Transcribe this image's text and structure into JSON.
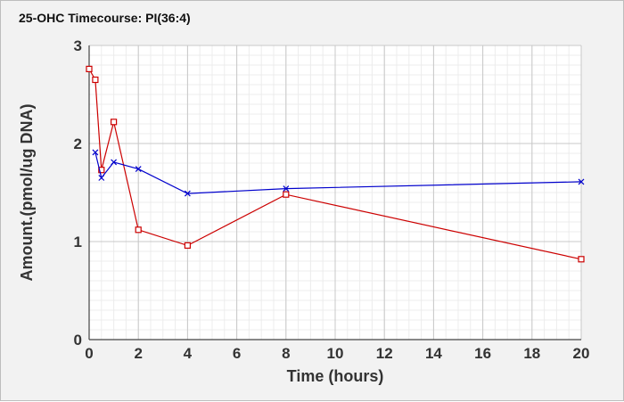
{
  "chart_data": {
    "type": "line",
    "title": "25-OHC Timecourse: PI(36:4)",
    "xlabel": "Time (hours)",
    "ylabel": "Amount.(pmol/ug DNA)",
    "xlim": [
      0,
      20
    ],
    "ylim": [
      0,
      3
    ],
    "xticks": [
      0,
      2,
      4,
      6,
      8,
      10,
      12,
      14,
      16,
      18,
      20
    ],
    "yticks": [
      0,
      1,
      2,
      3
    ],
    "grid": true,
    "legend": "none",
    "series": [
      {
        "color": "#cc0000",
        "marker": "square",
        "x": [
          0,
          0.25,
          0.5,
          1,
          2,
          4,
          8,
          20
        ],
        "y": [
          2.76,
          2.65,
          1.73,
          2.22,
          1.12,
          0.96,
          1.48,
          0.82
        ]
      },
      {
        "color": "#0000cc",
        "marker": "x",
        "x": [
          0.25,
          0.5,
          1,
          2,
          4,
          8,
          20
        ],
        "y": [
          1.91,
          1.65,
          1.81,
          1.74,
          1.49,
          1.54,
          1.61
        ]
      }
    ]
  }
}
